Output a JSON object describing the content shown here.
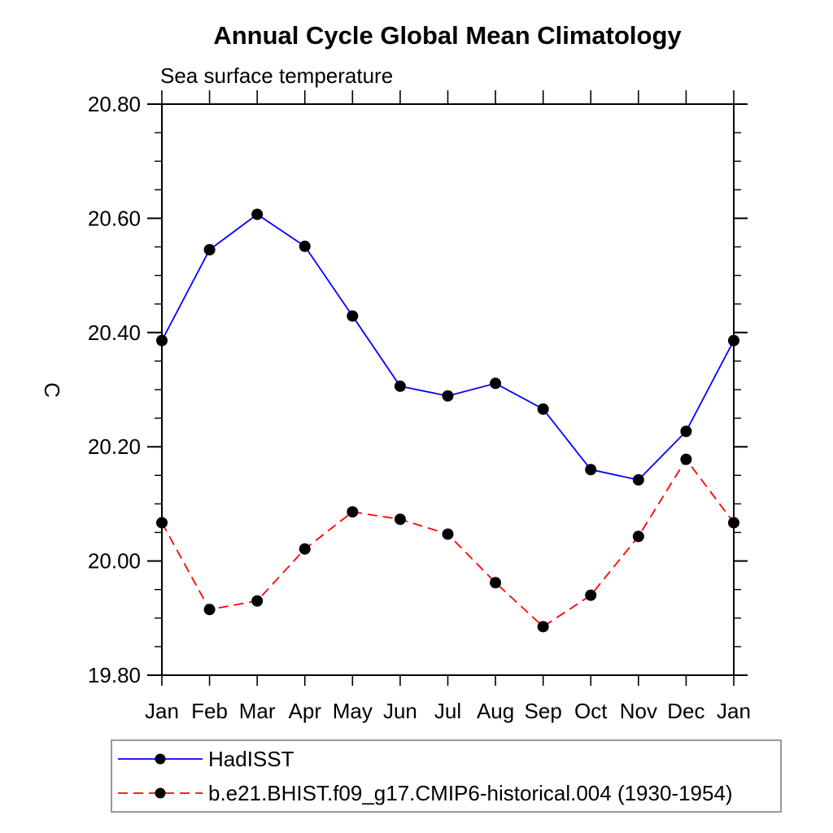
{
  "chart_data": {
    "type": "line",
    "title": "Annual Cycle Global Mean Climatology",
    "subtitle": "Sea surface temperature",
    "ylabel": "C",
    "categories": [
      "Jan",
      "Feb",
      "Mar",
      "Apr",
      "May",
      "Jun",
      "Jul",
      "Aug",
      "Sep",
      "Oct",
      "Nov",
      "Dec",
      "Jan"
    ],
    "ylim": [
      19.8,
      20.8
    ],
    "y_major_ticks": [
      19.8,
      20.0,
      20.2,
      20.4,
      20.6,
      20.8
    ],
    "y_tick_labels": [
      "19.80",
      "20.00",
      "20.20",
      "20.40",
      "20.60",
      "20.80"
    ],
    "y_minor_step": 0.05,
    "grid": false,
    "legend_position": "bottom-left-box",
    "frame_color": "#000000",
    "legend_border_color": "#999999",
    "series": [
      {
        "name": "HadISST",
        "color": "#0000ff",
        "line_style": "solid",
        "marker": "filled-circle",
        "marker_color": "#000000",
        "values": [
          20.386,
          20.545,
          20.607,
          20.551,
          20.429,
          20.306,
          20.289,
          20.311,
          20.266,
          20.16,
          20.142,
          20.227,
          20.386
        ]
      },
      {
        "name": "b.e21.BHIST.f09_g17.CMIP6-historical.004 (1930-1954)",
        "color": "#ff0000",
        "line_style": "dashed",
        "marker": "filled-circle",
        "marker_color": "#000000",
        "values": [
          20.067,
          19.915,
          19.93,
          20.021,
          20.086,
          20.073,
          20.047,
          19.962,
          19.885,
          19.94,
          20.043,
          20.178,
          20.067
        ]
      }
    ]
  }
}
